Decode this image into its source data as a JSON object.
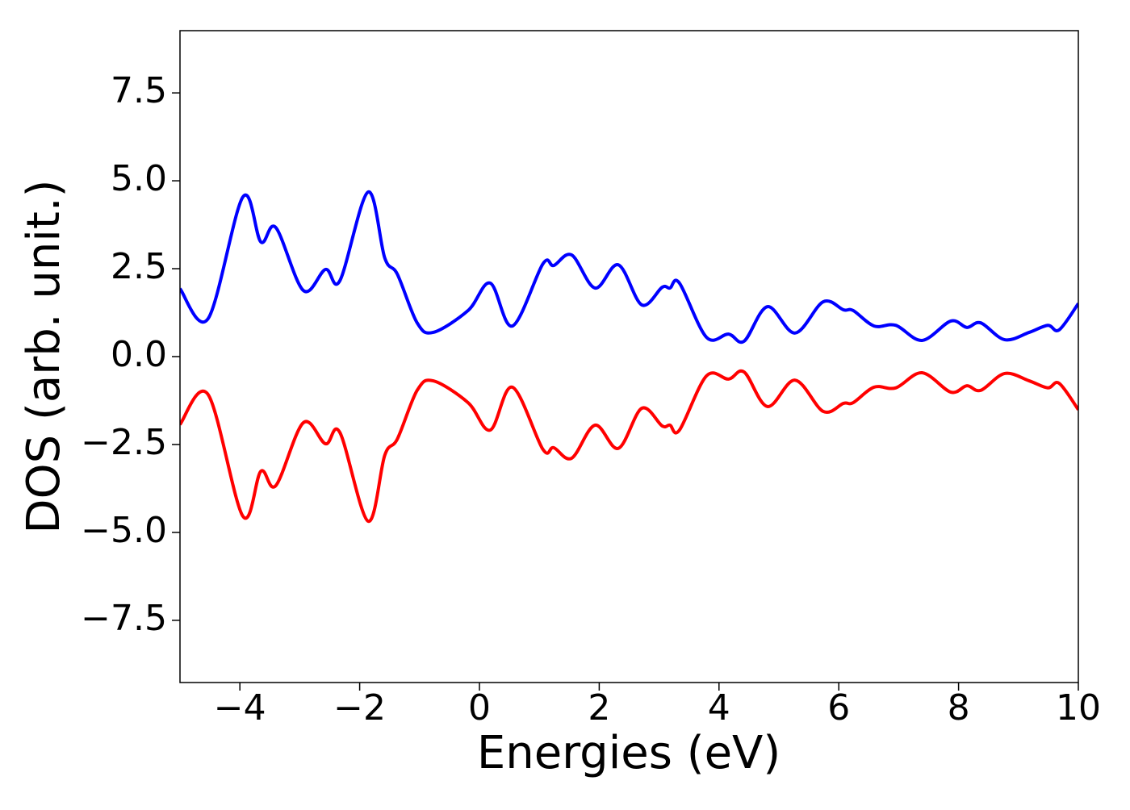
{
  "chart_data": {
    "type": "line",
    "x_label": "Energies (eV)",
    "y_label": "DOS (arb. unit.)",
    "x": [
      -5,
      -4.53,
      -3.95,
      -3.65,
      -3.4,
      -2.94,
      -2.57,
      -2.33,
      -1.86,
      -1.58,
      -1.37,
      -1.04,
      -0.77,
      -0.19,
      0.18,
      0.55,
      1.06,
      1.24,
      1.54,
      1.93,
      2.32,
      2.71,
      3.05,
      3.18,
      3.34,
      3.79,
      4.16,
      4.42,
      4.81,
      5.27,
      5.74,
      6.08,
      6.24,
      6.59,
      6.95,
      7.39,
      7.87,
      8.14,
      8.37,
      8.77,
      9.18,
      9.49,
      9.68,
      10
    ],
    "series": [
      {
        "color": "#0000ff",
        "values": [
          1.93,
          1.08,
          4.54,
          3.26,
          3.67,
          1.88,
          2.48,
          2.16,
          4.68,
          2.8,
          2.34,
          0.96,
          0.69,
          1.31,
          2.09,
          0.87,
          2.64,
          2.59,
          2.89,
          1.95,
          2.61,
          1.47,
          1.97,
          1.95,
          2.09,
          0.55,
          0.64,
          0.44,
          1.42,
          0.67,
          1.56,
          1.33,
          1.31,
          0.87,
          0.89,
          0.46,
          1.01,
          0.83,
          0.96,
          0.48,
          0.69,
          0.89,
          0.76,
          1.51
        ]
      },
      {
        "color": "#ff0000",
        "values": [
          -1.93,
          -1.08,
          -4.54,
          -3.26,
          -3.67,
          -1.88,
          -2.48,
          -2.16,
          -4.68,
          -2.8,
          -2.34,
          -0.96,
          -0.69,
          -1.31,
          -2.09,
          -0.87,
          -2.64,
          -2.59,
          -2.89,
          -1.95,
          -2.61,
          -1.47,
          -1.97,
          -1.95,
          -2.09,
          -0.55,
          -0.64,
          -0.44,
          -1.42,
          -0.67,
          -1.56,
          -1.33,
          -1.31,
          -0.87,
          -0.89,
          -0.46,
          -1.01,
          -0.83,
          -0.96,
          -0.48,
          -0.69,
          -0.89,
          -0.76,
          -1.51
        ]
      }
    ],
    "xlim": [
      -5,
      10
    ],
    "xticks": [
      {
        "value": -4,
        "label": "−4"
      },
      {
        "value": -2,
        "label": "−2"
      },
      0,
      2,
      4,
      6,
      8,
      10
    ],
    "ylim": [
      -9.27,
      9.27
    ],
    "yticks": [
      {
        "value": -7.5,
        "label": "−7.5"
      },
      {
        "value": -5,
        "label": "−5.0"
      },
      {
        "value": -2.5,
        "label": "−2.5"
      },
      {
        "value": 0,
        "label": "0.0"
      },
      2.5,
      {
        "value": 5,
        "label": "5.0"
      },
      7.5
    ],
    "grid": false
  }
}
